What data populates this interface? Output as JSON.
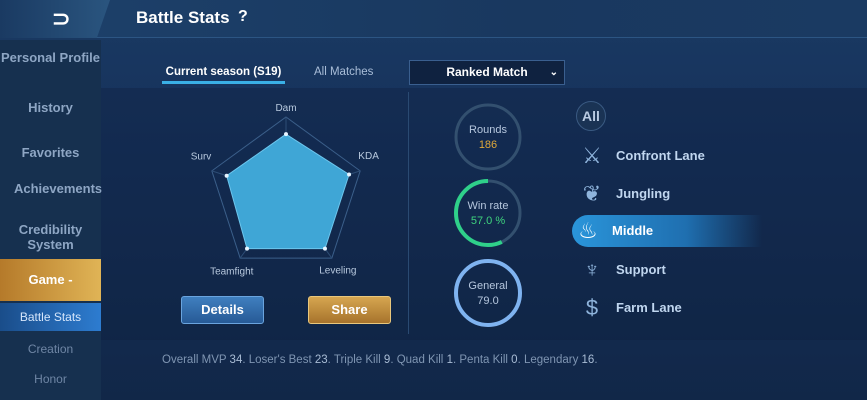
{
  "header": {
    "back_icon": "back-arrow-icon",
    "title": "Battle Stats",
    "help": "?"
  },
  "sidebar": {
    "items": [
      {
        "label": "Personal Profile"
      },
      {
        "label": "History"
      },
      {
        "label": "Favorites"
      },
      {
        "label": "Achievements"
      },
      {
        "label": "Credibility System"
      },
      {
        "label": "Game -"
      },
      {
        "label": "Battle Stats"
      },
      {
        "label": "Creation"
      },
      {
        "label": "Honor"
      }
    ]
  },
  "tabs": {
    "current": "Current season (S19)",
    "all": "All Matches",
    "mode": "Ranked Match"
  },
  "chart_data": {
    "type": "radar",
    "axes": [
      "Dam",
      "KDA",
      "Leveling",
      "Teamfight",
      "Surv"
    ],
    "values": [
      0.78,
      0.85,
      0.85,
      0.85,
      0.8
    ],
    "range": [
      0,
      1
    ]
  },
  "buttons": {
    "details": "Details",
    "share": "Share"
  },
  "stats": {
    "rounds": {
      "label": "Rounds",
      "value": "186"
    },
    "winrate": {
      "label": "Win rate",
      "value": "57.0 %",
      "percent": 57
    },
    "general": {
      "label": "General",
      "value": "79.0"
    }
  },
  "lanes": {
    "all": "All",
    "items": [
      {
        "name": "Confront Lane",
        "icon": "crossed-swords-icon"
      },
      {
        "name": "Jungling",
        "icon": "leaf-icon"
      },
      {
        "name": "Middle",
        "icon": "flame-icon",
        "active": true
      },
      {
        "name": "Support",
        "icon": "trident-icon"
      },
      {
        "name": "Farm Lane",
        "icon": "coin-icon"
      }
    ]
  },
  "footer": {
    "mvp_l": "Overall MVP",
    "mvp": "34",
    "lb_l": "Loser's Best",
    "lb": "23",
    "tk_l": "Triple Kill",
    "tk": "9",
    "qk_l": "Quad Kill",
    "qk": "1",
    "pk_l": "Penta Kill",
    "pk": "0",
    "lg_l": "Legendary",
    "lg": "16"
  },
  "colors": {
    "gold": "#d6a650",
    "blue": "#2a95da",
    "green": "#2fd08a",
    "rounds": "#e0a93a"
  }
}
